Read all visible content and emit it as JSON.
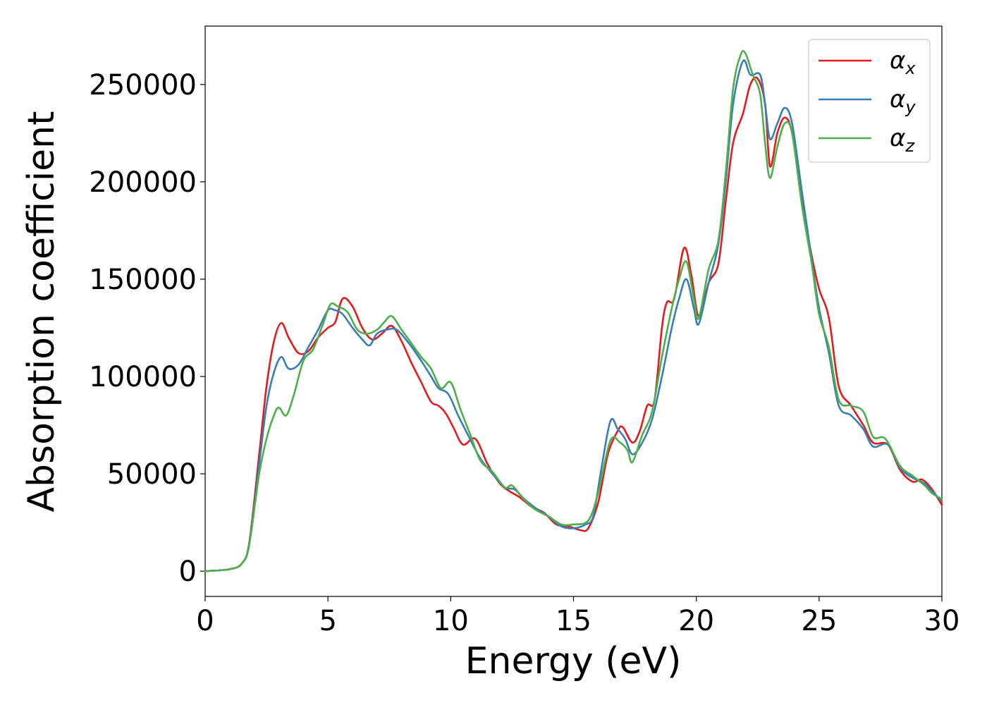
{
  "chart_data": {
    "type": "line",
    "title": "",
    "xlabel": "Energy (eV)",
    "ylabel": "Absorption coefficient",
    "xlim": [
      0,
      30
    ],
    "ylim": [
      -13000,
      280000
    ],
    "xticks": [
      0,
      5,
      10,
      15,
      20,
      25,
      30
    ],
    "yticks": [
      0,
      50000,
      100000,
      150000,
      200000,
      250000
    ],
    "grid": false,
    "legend_position": "top-right",
    "series": [
      {
        "name": "α",
        "subscript": "x",
        "color": "#e41a1c",
        "points": [
          [
            0,
            0
          ],
          [
            1,
            1000
          ],
          [
            1.5,
            4000
          ],
          [
            1.8,
            15000
          ],
          [
            2.2,
            60000
          ],
          [
            2.5,
            95000
          ],
          [
            2.8,
            118000
          ],
          [
            3.1,
            127500
          ],
          [
            3.4,
            120000
          ],
          [
            3.8,
            112000
          ],
          [
            4.2,
            113000
          ],
          [
            4.6,
            120000
          ],
          [
            5.0,
            125000
          ],
          [
            5.3,
            128000
          ],
          [
            5.6,
            140000
          ],
          [
            6.0,
            136000
          ],
          [
            6.4,
            125000
          ],
          [
            6.8,
            119000
          ],
          [
            7.2,
            122000
          ],
          [
            7.6,
            126000
          ],
          [
            8.0,
            118000
          ],
          [
            8.4,
            107000
          ],
          [
            8.8,
            97000
          ],
          [
            9.2,
            87000
          ],
          [
            9.5,
            85000
          ],
          [
            9.8,
            81000
          ],
          [
            10.1,
            74000
          ],
          [
            10.5,
            65000
          ],
          [
            11.0,
            68000
          ],
          [
            11.5,
            55000
          ],
          [
            12.0,
            45000
          ],
          [
            12.4,
            41000
          ],
          [
            12.8,
            38000
          ],
          [
            13.3,
            33000
          ],
          [
            13.8,
            30000
          ],
          [
            14.3,
            24000
          ],
          [
            14.8,
            23000
          ],
          [
            15.3,
            21000
          ],
          [
            15.6,
            22000
          ],
          [
            16.0,
            35000
          ],
          [
            16.4,
            60000
          ],
          [
            16.8,
            72000
          ],
          [
            17.0,
            74000
          ],
          [
            17.4,
            66000
          ],
          [
            17.7,
            72000
          ],
          [
            18.0,
            85000
          ],
          [
            18.3,
            88000
          ],
          [
            18.6,
            125000
          ],
          [
            18.8,
            138000
          ],
          [
            19.1,
            140000
          ],
          [
            19.5,
            166000
          ],
          [
            19.8,
            152000
          ],
          [
            20.1,
            131000
          ],
          [
            20.5,
            148000
          ],
          [
            20.9,
            158000
          ],
          [
            21.2,
            190000
          ],
          [
            21.5,
            220000
          ],
          [
            21.9,
            235000
          ],
          [
            22.2,
            250000
          ],
          [
            22.5,
            253000
          ],
          [
            22.8,
            240000
          ],
          [
            23.0,
            208000
          ],
          [
            23.3,
            225000
          ],
          [
            23.6,
            233000
          ],
          [
            23.9,
            225000
          ],
          [
            24.3,
            190000
          ],
          [
            24.7,
            162000
          ],
          [
            25.0,
            145000
          ],
          [
            25.4,
            130000
          ],
          [
            25.8,
            95000
          ],
          [
            26.3,
            85000
          ],
          [
            26.8,
            75000
          ],
          [
            27.2,
            66000
          ],
          [
            27.8,
            65000
          ],
          [
            28.3,
            52000
          ],
          [
            28.8,
            46000
          ],
          [
            29.2,
            47000
          ],
          [
            29.6,
            42000
          ],
          [
            30.0,
            34000
          ]
        ]
      },
      {
        "name": "α",
        "subscript": "y",
        "color": "#377eb8",
        "points": [
          [
            0,
            0
          ],
          [
            1,
            1000
          ],
          [
            1.5,
            4000
          ],
          [
            1.8,
            14000
          ],
          [
            2.2,
            55000
          ],
          [
            2.5,
            85000
          ],
          [
            2.8,
            102000
          ],
          [
            3.1,
            110000
          ],
          [
            3.4,
            104000
          ],
          [
            3.8,
            106000
          ],
          [
            4.2,
            115000
          ],
          [
            4.6,
            124000
          ],
          [
            5.0,
            134000
          ],
          [
            5.3,
            134000
          ],
          [
            5.6,
            132000
          ],
          [
            6.0,
            125000
          ],
          [
            6.4,
            119000
          ],
          [
            6.7,
            116000
          ],
          [
            7.0,
            122000
          ],
          [
            7.4,
            124000
          ],
          [
            7.8,
            124000
          ],
          [
            8.3,
            117000
          ],
          [
            8.8,
            108000
          ],
          [
            9.2,
            100000
          ],
          [
            9.5,
            94000
          ],
          [
            9.9,
            91000
          ],
          [
            10.3,
            80000
          ],
          [
            10.7,
            70000
          ],
          [
            11.2,
            58000
          ],
          [
            11.7,
            50000
          ],
          [
            12.2,
            43000
          ],
          [
            12.6,
            42000
          ],
          [
            13.0,
            37000
          ],
          [
            13.5,
            32000
          ],
          [
            14.0,
            28000
          ],
          [
            14.5,
            23000
          ],
          [
            15.0,
            22000
          ],
          [
            15.5,
            24000
          ],
          [
            15.8,
            28000
          ],
          [
            16.1,
            50000
          ],
          [
            16.5,
            77000
          ],
          [
            16.8,
            73000
          ],
          [
            17.1,
            68000
          ],
          [
            17.4,
            60000
          ],
          [
            17.8,
            66000
          ],
          [
            18.2,
            78000
          ],
          [
            18.6,
            100000
          ],
          [
            19.0,
            125000
          ],
          [
            19.3,
            140000
          ],
          [
            19.6,
            150000
          ],
          [
            19.9,
            135000
          ],
          [
            20.1,
            127000
          ],
          [
            20.5,
            148000
          ],
          [
            20.9,
            168000
          ],
          [
            21.2,
            200000
          ],
          [
            21.5,
            240000
          ],
          [
            21.9,
            262000
          ],
          [
            22.2,
            255000
          ],
          [
            22.6,
            255000
          ],
          [
            22.8,
            240000
          ],
          [
            23.0,
            222000
          ],
          [
            23.3,
            230000
          ],
          [
            23.6,
            238000
          ],
          [
            23.9,
            230000
          ],
          [
            24.3,
            195000
          ],
          [
            24.7,
            160000
          ],
          [
            25.0,
            135000
          ],
          [
            25.4,
            112000
          ],
          [
            25.8,
            85000
          ],
          [
            26.3,
            80000
          ],
          [
            26.8,
            73000
          ],
          [
            27.2,
            64000
          ],
          [
            27.8,
            65000
          ],
          [
            28.3,
            53000
          ],
          [
            28.8,
            48000
          ],
          [
            29.3,
            45000
          ],
          [
            29.6,
            41000
          ],
          [
            30.0,
            36000
          ]
        ]
      },
      {
        "name": "α",
        "subscript": "z",
        "color": "#4daf4a",
        "points": [
          [
            0,
            0
          ],
          [
            1,
            1000
          ],
          [
            1.5,
            4000
          ],
          [
            1.8,
            14000
          ],
          [
            2.2,
            50000
          ],
          [
            2.5,
            68000
          ],
          [
            2.8,
            80000
          ],
          [
            3.0,
            84000
          ],
          [
            3.3,
            80000
          ],
          [
            3.6,
            90000
          ],
          [
            4.0,
            108000
          ],
          [
            4.4,
            114000
          ],
          [
            4.8,
            127000
          ],
          [
            5.1,
            137000
          ],
          [
            5.4,
            136000
          ],
          [
            5.8,
            133000
          ],
          [
            6.2,
            124000
          ],
          [
            6.6,
            122000
          ],
          [
            7.0,
            124000
          ],
          [
            7.3,
            128000
          ],
          [
            7.6,
            131000
          ],
          [
            8.0,
            124000
          ],
          [
            8.4,
            117000
          ],
          [
            8.8,
            110000
          ],
          [
            9.2,
            104000
          ],
          [
            9.6,
            94000
          ],
          [
            10.0,
            97000
          ],
          [
            10.4,
            83000
          ],
          [
            10.8,
            70000
          ],
          [
            11.2,
            57000
          ],
          [
            11.7,
            51000
          ],
          [
            12.2,
            43000
          ],
          [
            12.5,
            44000
          ],
          [
            12.9,
            38000
          ],
          [
            13.4,
            32000
          ],
          [
            14.0,
            28000
          ],
          [
            14.5,
            24000
          ],
          [
            15.0,
            24000
          ],
          [
            15.6,
            26000
          ],
          [
            16.0,
            40000
          ],
          [
            16.5,
            67000
          ],
          [
            16.9,
            66000
          ],
          [
            17.2,
            62000
          ],
          [
            17.4,
            56000
          ],
          [
            17.8,
            70000
          ],
          [
            18.2,
            82000
          ],
          [
            18.6,
            110000
          ],
          [
            19.0,
            135000
          ],
          [
            19.3,
            150000
          ],
          [
            19.6,
            159000
          ],
          [
            19.9,
            140000
          ],
          [
            20.1,
            130000
          ],
          [
            20.5,
            155000
          ],
          [
            20.9,
            170000
          ],
          [
            21.2,
            205000
          ],
          [
            21.5,
            248000
          ],
          [
            21.8,
            265000
          ],
          [
            22.0,
            266000
          ],
          [
            22.3,
            255000
          ],
          [
            22.6,
            245000
          ],
          [
            22.8,
            220000
          ],
          [
            23.0,
            202000
          ],
          [
            23.3,
            218000
          ],
          [
            23.6,
            230000
          ],
          [
            23.9,
            225000
          ],
          [
            24.3,
            188000
          ],
          [
            24.7,
            158000
          ],
          [
            25.0,
            132000
          ],
          [
            25.4,
            115000
          ],
          [
            25.8,
            88000
          ],
          [
            26.3,
            85000
          ],
          [
            26.8,
            82000
          ],
          [
            27.2,
            69000
          ],
          [
            27.7,
            68000
          ],
          [
            28.3,
            54000
          ],
          [
            28.8,
            49000
          ],
          [
            29.3,
            44000
          ],
          [
            29.6,
            40000
          ],
          [
            30.0,
            37000
          ]
        ]
      }
    ]
  }
}
